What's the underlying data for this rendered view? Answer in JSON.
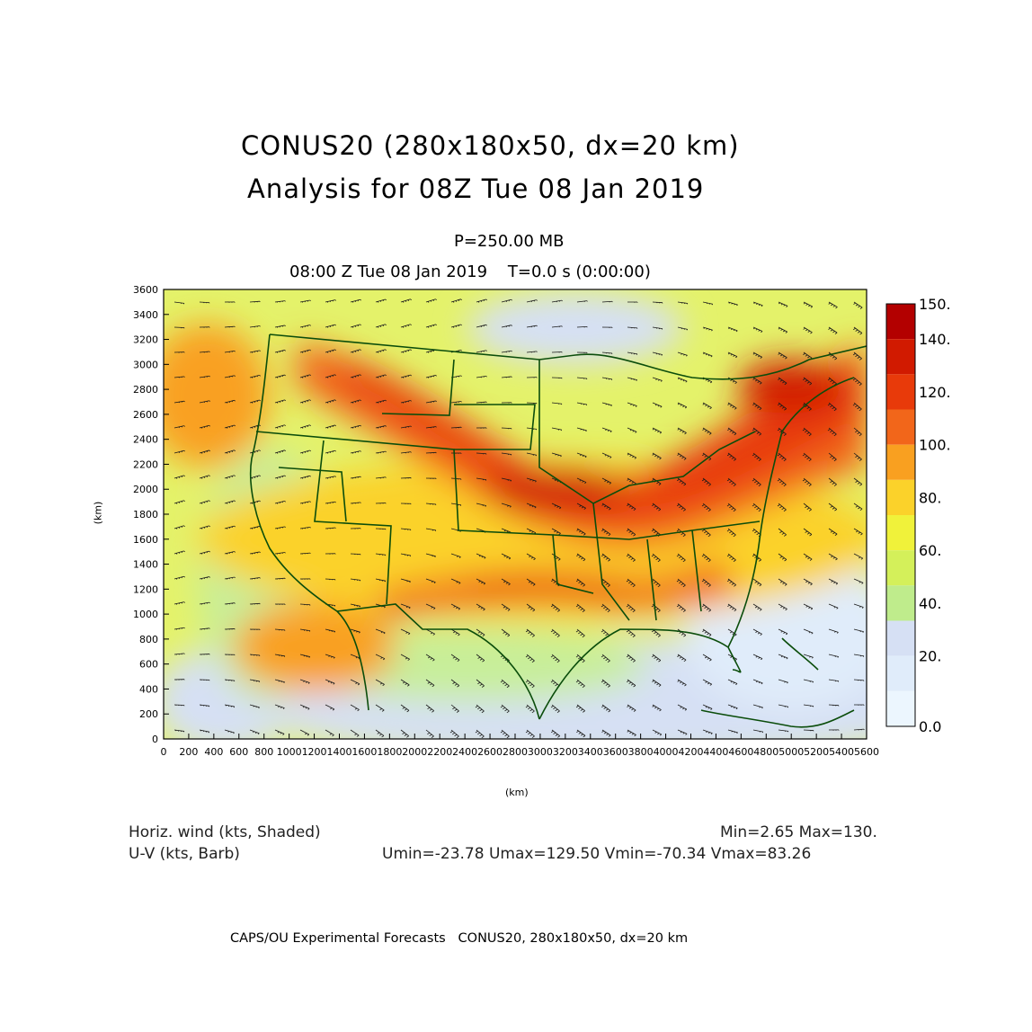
{
  "title": {
    "line1": "CONUS20 (280x180x50, dx=20 km)",
    "line2": "Analysis for 08Z Tue 08 Jan 2019"
  },
  "level": "P=250.00 MB",
  "time_line": "08:00 Z Tue 08 Jan 2019    T=0.0 s (0:00:00)",
  "axes": {
    "x_unit": "(km)",
    "y_unit": "(km)",
    "x_ticks": [
      "0",
      "200",
      "400",
      "600",
      "800",
      "1000",
      "1200",
      "1400",
      "1600",
      "1800",
      "2000",
      "2200",
      "2400",
      "2600",
      "2800",
      "3000",
      "3200",
      "3400",
      "3600",
      "3800",
      "4000",
      "4200",
      "4400",
      "4600",
      "4800",
      "5000",
      "5200",
      "5400",
      "5600"
    ],
    "y_ticks": [
      "0",
      "200",
      "400",
      "600",
      "800",
      "1000",
      "1200",
      "1400",
      "1600",
      "1800",
      "2000",
      "2200",
      "2400",
      "2600",
      "2800",
      "3000",
      "3200",
      "3400",
      "3600"
    ]
  },
  "colorbar": {
    "labels": [
      "150.",
      "140.",
      "120.",
      "100.",
      "80.",
      "60.",
      "40.",
      "20.",
      "0.0"
    ],
    "colors": [
      "#b30000",
      "#d11a00",
      "#e83a0a",
      "#f2661a",
      "#f9a020",
      "#fbd22a",
      "#f0f23a",
      "#d4f05a",
      "#bfec8c",
      "#d6e0f4",
      "#e0ecfa",
      "#ecf6fe"
    ]
  },
  "info": {
    "field1": "Horiz. wind (kts, Shaded)",
    "field2": "U-V (kts, Barb)",
    "minmax": "Min=2.65 Max=130.",
    "uv_stats": "Umin=-23.78 Umax=129.50 Vmin=-70.34 Vmax=83.26"
  },
  "footer": "CAPS/OU Experimental Forecasts   CONUS20, 280x180x50, dx=20 km",
  "map_colors": {
    "border": "#0b4d0b",
    "frame": "#000000"
  }
}
